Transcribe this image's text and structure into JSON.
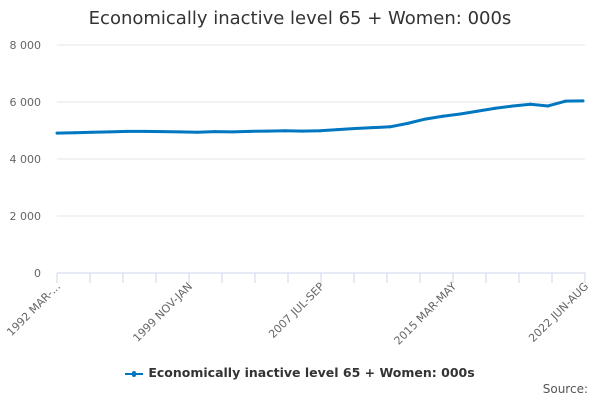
{
  "chart_data": {
    "type": "line",
    "title": "Economically inactive level 65 + Women: 000s",
    "ylim": [
      0,
      8000
    ],
    "yticks": [
      0,
      2000,
      4000,
      6000,
      8000
    ],
    "ytick_labels": [
      "0",
      "2 000",
      "4 000",
      "6 000",
      "8 000"
    ],
    "xtick_labels": [
      "1992 MAR-...",
      "1999 NOV-JAN",
      "2007 JUL-SEP",
      "2015 MAR-MAY",
      "2022 JUN-AUG"
    ],
    "grid": true,
    "legend_position": "bottom",
    "color": "#0077c0",
    "series": [
      {
        "name": "Economically inactive level 65 + Women: 000s",
        "x": [
          "1992 MAR-MAY",
          "1993 MAR-MAY",
          "1994 MAR-MAY",
          "1995 MAR-MAY",
          "1996 MAR-MAY",
          "1997 MAR-MAY",
          "1998 MAR-MAY",
          "1999 MAR-MAY",
          "2000 MAR-MAY",
          "2001 MAR-MAY",
          "2002 MAR-MAY",
          "2003 MAR-MAY",
          "2004 MAR-MAY",
          "2005 MAR-MAY",
          "2006 MAR-MAY",
          "2007 MAR-MAY",
          "2008 MAR-MAY",
          "2009 MAR-MAY",
          "2010 MAR-MAY",
          "2011 MAR-MAY",
          "2012 MAR-MAY",
          "2013 MAR-MAY",
          "2014 MAR-MAY",
          "2015 MAR-MAY",
          "2016 MAR-MAY",
          "2017 MAR-MAY",
          "2018 MAR-MAY",
          "2019 MAR-MAY",
          "2020 MAR-MAY",
          "2021 MAR-MAY",
          "2022 JUN-AUG"
        ],
        "values": [
          4910,
          4920,
          4940,
          4950,
          4970,
          4970,
          4960,
          4950,
          4940,
          4960,
          4950,
          4970,
          4980,
          4990,
          4980,
          4990,
          5030,
          5070,
          5100,
          5130,
          5250,
          5400,
          5500,
          5580,
          5680,
          5780,
          5860,
          5920,
          5860,
          6030,
          6040
        ]
      }
    ],
    "source_label": "Source:"
  }
}
